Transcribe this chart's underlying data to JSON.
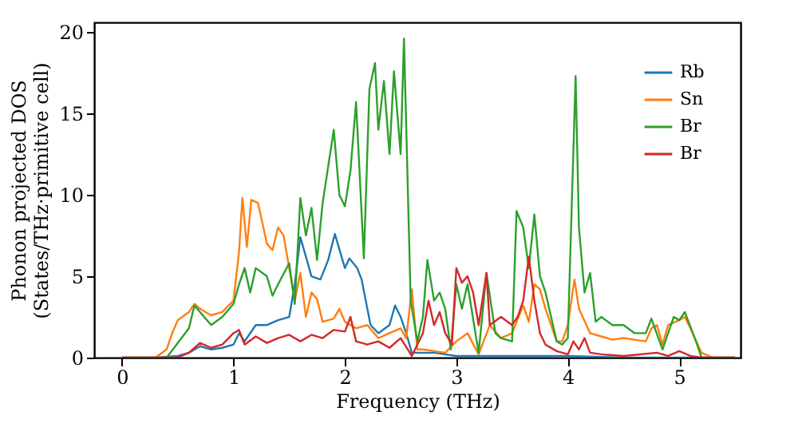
{
  "chart_data": {
    "type": "line",
    "xlabel": "Frequency (THz)",
    "ylabel": "Phonon projected DOS\n(States/THz·primitive cell)",
    "xlim": [
      -0.25,
      5.55
    ],
    "ylim": [
      0,
      20.6
    ],
    "xticks": [
      0,
      1,
      2,
      3,
      4,
      5
    ],
    "yticks": [
      0,
      5,
      10,
      15,
      20
    ],
    "grid": false,
    "legend": "top right",
    "marker": "none",
    "line_style": "solid",
    "series": [
      {
        "name": "Rb",
        "color": "#1f77b4",
        "x": [
          0,
          0.3,
          0.5,
          0.6,
          0.7,
          0.8,
          0.9,
          1.0,
          1.05,
          1.1,
          1.2,
          1.3,
          1.4,
          1.5,
          1.55,
          1.6,
          1.7,
          1.78,
          1.85,
          1.91,
          2.0,
          2.04,
          2.11,
          2.15,
          2.23,
          2.3,
          2.4,
          2.45,
          2.5,
          2.55,
          2.6,
          2.8,
          3.0,
          3.5,
          4.0,
          4.5,
          5.0,
          5.5
        ],
        "values": [
          0,
          0,
          0.1,
          0.3,
          0.7,
          0.5,
          0.6,
          0.8,
          1.5,
          1.0,
          2.0,
          2.0,
          2.3,
          2.5,
          4.5,
          7.4,
          5.0,
          4.8,
          6.0,
          7.6,
          5.5,
          6.1,
          5.5,
          4.8,
          2.0,
          1.5,
          2.0,
          3.2,
          2.5,
          1.5,
          0.3,
          0.3,
          0.1,
          0.1,
          0.1,
          0,
          0,
          0
        ]
      },
      {
        "name": "Sn",
        "color": "#ff7f0e",
        "x": [
          0,
          0.3,
          0.4,
          0.45,
          0.5,
          0.6,
          0.65,
          0.7,
          0.8,
          0.9,
          1.0,
          1.05,
          1.08,
          1.12,
          1.16,
          1.22,
          1.3,
          1.35,
          1.4,
          1.45,
          1.5,
          1.55,
          1.6,
          1.65,
          1.7,
          1.75,
          1.8,
          1.9,
          1.95,
          2.0,
          2.1,
          2.2,
          2.3,
          2.4,
          2.5,
          2.55,
          2.6,
          2.65,
          2.7,
          2.8,
          2.9,
          3.0,
          3.1,
          3.2,
          3.3,
          3.4,
          3.5,
          3.6,
          3.65,
          3.7,
          3.75,
          3.8,
          3.9,
          3.95,
          4.0,
          4.06,
          4.1,
          4.2,
          4.3,
          4.4,
          4.5,
          4.6,
          4.7,
          4.75,
          4.8,
          4.85,
          4.9,
          5.0,
          5.05,
          5.1,
          5.2,
          5.3,
          5.5
        ],
        "values": [
          0,
          0,
          0.5,
          1.5,
          2.3,
          2.8,
          3.3,
          3.0,
          2.6,
          2.8,
          3.5,
          6.5,
          9.8,
          6.8,
          9.7,
          9.5,
          7.0,
          6.6,
          8.0,
          7.5,
          5.5,
          3.5,
          5.2,
          2.5,
          4.0,
          3.6,
          2.2,
          2.4,
          3.0,
          2.2,
          1.8,
          2.0,
          1.2,
          1.5,
          1.8,
          1.2,
          4.2,
          0.5,
          0.5,
          0.4,
          0.3,
          1.0,
          1.5,
          0.2,
          2.0,
          1.2,
          1.5,
          3.2,
          2.2,
          4.5,
          4.2,
          3.0,
          1.0,
          1.0,
          2.0,
          4.8,
          3.0,
          1.5,
          1.3,
          1.1,
          1.2,
          1.1,
          1.0,
          1.8,
          2.0,
          0.8,
          2.0,
          2.3,
          2.5,
          1.8,
          0.3,
          0,
          0
        ]
      },
      {
        "name": "Br",
        "color": "#2ca02c",
        "x": [
          0,
          0.4,
          0.5,
          0.6,
          0.65,
          0.7,
          0.8,
          0.9,
          1.0,
          1.05,
          1.1,
          1.15,
          1.2,
          1.3,
          1.35,
          1.4,
          1.5,
          1.55,
          1.6,
          1.65,
          1.7,
          1.75,
          1.8,
          1.9,
          1.95,
          2.0,
          2.05,
          2.1,
          2.17,
          2.22,
          2.27,
          2.3,
          2.35,
          2.4,
          2.44,
          2.5,
          2.53,
          2.59,
          2.65,
          2.7,
          2.74,
          2.8,
          2.85,
          2.9,
          2.95,
          3.0,
          3.05,
          3.1,
          3.2,
          3.27,
          3.35,
          3.4,
          3.5,
          3.54,
          3.6,
          3.65,
          3.7,
          3.75,
          3.8,
          3.85,
          3.9,
          3.95,
          4.0,
          4.07,
          4.1,
          4.15,
          4.2,
          4.25,
          4.3,
          4.4,
          4.5,
          4.6,
          4.7,
          4.75,
          4.85,
          4.95,
          5.0,
          5.05,
          5.15,
          5.2,
          5.5
        ],
        "values": [
          0,
          0,
          0.9,
          1.8,
          3.2,
          2.8,
          2.0,
          2.5,
          3.3,
          4.5,
          5.5,
          4.0,
          5.5,
          5.0,
          3.8,
          4.5,
          5.8,
          3.3,
          9.8,
          7.5,
          9.2,
          6.0,
          9.5,
          14.0,
          10.0,
          9.3,
          11.5,
          15.7,
          6.1,
          16.5,
          18.1,
          14.0,
          17.0,
          12.5,
          17.6,
          12.5,
          19.6,
          3.5,
          1.0,
          2.5,
          6.0,
          3.5,
          4.0,
          3.0,
          0.5,
          4.5,
          3.0,
          4.5,
          0.3,
          5.2,
          1.5,
          1.2,
          1.0,
          9.0,
          8.0,
          5.5,
          8.8,
          5.0,
          4.0,
          2.5,
          1.0,
          0.8,
          1.2,
          17.3,
          8.0,
          4.0,
          5.2,
          2.2,
          2.5,
          2.0,
          2.0,
          1.5,
          1.5,
          2.4,
          0.5,
          2.5,
          2.3,
          2.8,
          1.0,
          0,
          0
        ]
      },
      {
        "name": "Br",
        "color": "#d62728",
        "x": [
          0,
          0.5,
          0.6,
          0.7,
          0.8,
          0.9,
          1.0,
          1.05,
          1.1,
          1.2,
          1.3,
          1.4,
          1.5,
          1.6,
          1.7,
          1.8,
          1.9,
          2.0,
          2.05,
          2.1,
          2.2,
          2.3,
          2.4,
          2.5,
          2.6,
          2.7,
          2.75,
          2.8,
          2.85,
          2.9,
          2.96,
          3.0,
          3.05,
          3.1,
          3.15,
          3.2,
          3.27,
          3.3,
          3.4,
          3.5,
          3.55,
          3.6,
          3.65,
          3.7,
          3.75,
          3.8,
          3.9,
          4.0,
          4.05,
          4.1,
          4.15,
          4.2,
          4.3,
          4.5,
          4.8,
          4.9,
          5.0,
          5.1,
          5.2,
          5.5
        ],
        "values": [
          0,
          0,
          0.3,
          0.9,
          0.6,
          0.8,
          1.5,
          1.7,
          0.8,
          1.3,
          0.9,
          1.2,
          1.4,
          1.0,
          1.4,
          1.2,
          1.7,
          1.6,
          2.5,
          1.0,
          0.8,
          1.0,
          0.6,
          1.2,
          0.1,
          1.5,
          3.5,
          2.0,
          2.8,
          1.5,
          0.8,
          5.5,
          4.6,
          5.0,
          4.0,
          2.0,
          5.2,
          2.0,
          2.5,
          2.0,
          2.5,
          3.5,
          6.2,
          3.5,
          1.5,
          0.8,
          0.4,
          0.2,
          1.0,
          0.5,
          1.2,
          0.3,
          0.2,
          0.1,
          0.3,
          0.1,
          0.4,
          0.1,
          0,
          0
        ]
      }
    ]
  }
}
